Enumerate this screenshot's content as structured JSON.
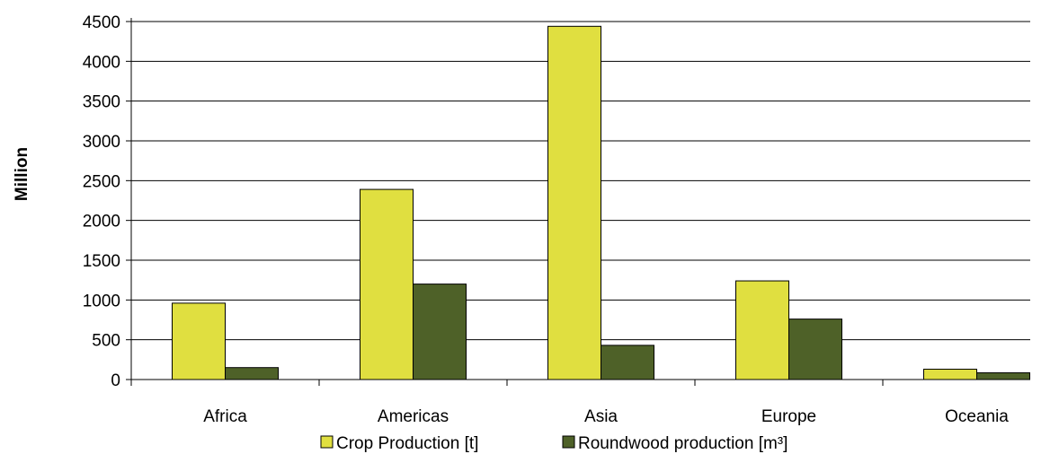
{
  "chart_data": {
    "type": "bar",
    "categories": [
      "Africa",
      "Americas",
      "Asia",
      "Europe",
      "Oceania"
    ],
    "series": [
      {
        "name": "Crop Production [t]",
        "color": "#e0df40",
        "values": [
          960,
          2390,
          4440,
          1240,
          130
        ]
      },
      {
        "name": "Roundwood production [m³]",
        "color": "#4e6128",
        "values": [
          150,
          1200,
          430,
          760,
          85
        ]
      }
    ],
    "ylabel": "Million",
    "xlabel": "",
    "ylim": [
      0,
      4500
    ],
    "yticks": [
      0,
      500,
      1000,
      1500,
      2000,
      2500,
      3000,
      3500,
      4000,
      4500
    ],
    "grid": true,
    "legend_position": "bottom"
  }
}
